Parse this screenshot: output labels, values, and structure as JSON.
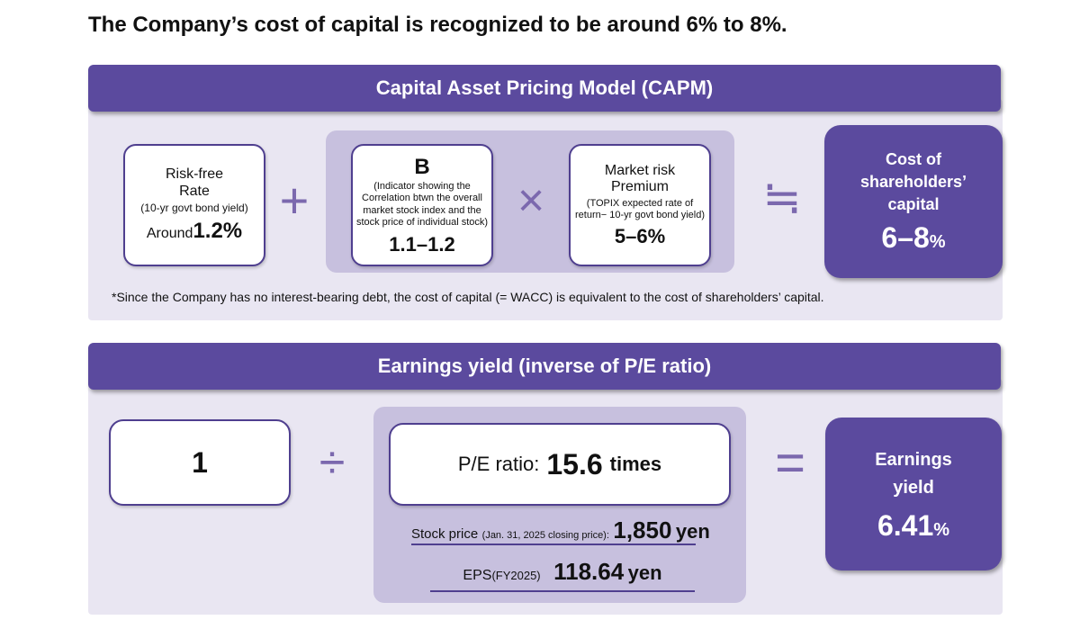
{
  "title": "The Company’s cost of capital is recognized to be around 6% to 8%.",
  "capm": {
    "header": "Capital Asset Pricing Model (CAPM)",
    "risk_free": {
      "line1": "Risk-free",
      "line2": "Rate",
      "sub": "(10-yr govt bond yield)",
      "value_prefix": "Around",
      "value": "1.2%"
    },
    "op_plus": "+",
    "beta": {
      "symbol": "B",
      "desc": "(Indicator showing the Correlation btwn the overall market stock index and the stock price of individual stock)",
      "value": "1.1–1.2"
    },
    "op_times": "×",
    "market_risk": {
      "line1": "Market risk",
      "line2": "Premium",
      "sub": "(TOPIX expected rate of return− 10-yr govt bond yield)",
      "value": "5–6%"
    },
    "op_approx": "≒",
    "result": {
      "line1": "Cost of",
      "line2": "shareholders’",
      "line3": "capital",
      "value": "6–8",
      "unit": "%"
    },
    "footnote": "*Since the Company has no interest-bearing debt, the cost of capital (= WACC) is equivalent to the cost of shareholders’ capital."
  },
  "earnings": {
    "header": "Earnings yield (inverse of P/E ratio)",
    "numerator": "1",
    "op_divide": "÷",
    "pe": {
      "label": "P/E ratio:",
      "value": "15.6",
      "unit": "times"
    },
    "stock_price": {
      "label": "Stock price",
      "note": "(Jan. 31, 2025 closing price):",
      "value": "1,850",
      "unit": "yen"
    },
    "eps": {
      "label": "EPS",
      "note": "(FY2025)",
      "value": "118.64",
      "unit": "yen"
    },
    "op_equals": "=",
    "result": {
      "line1": "Earnings",
      "line2": "yield",
      "value": "6.41",
      "unit": "%"
    }
  }
}
